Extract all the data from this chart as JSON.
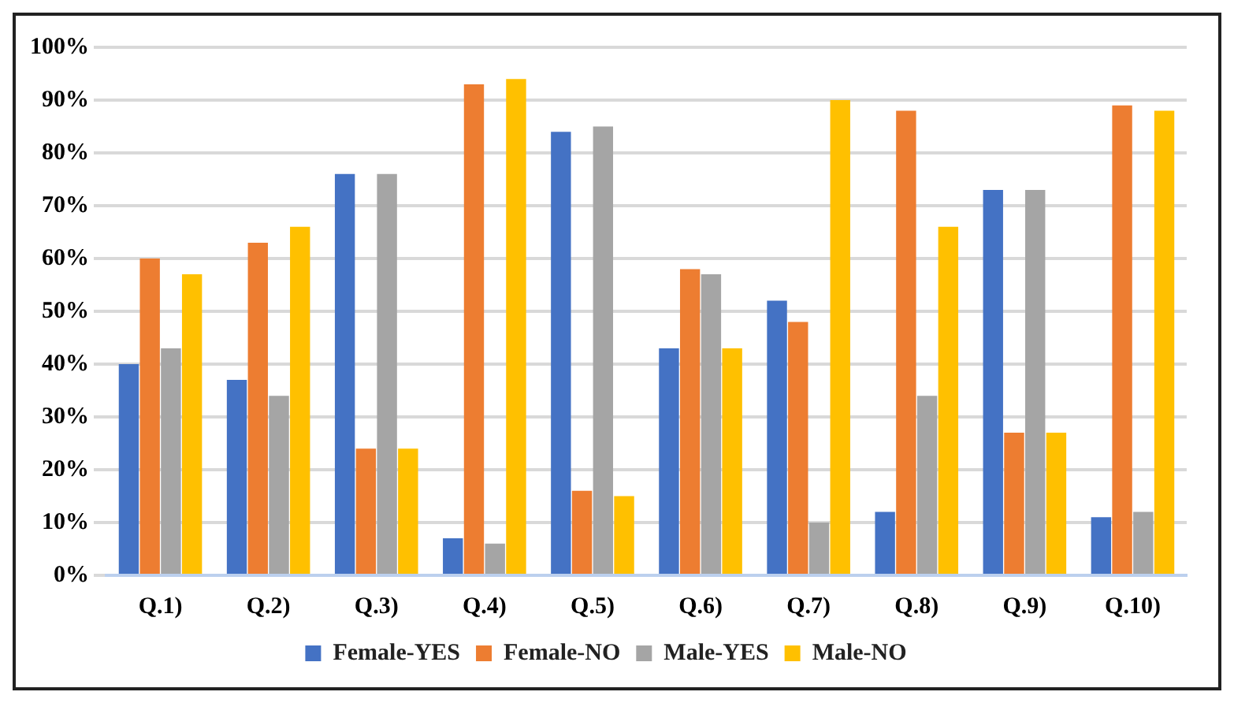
{
  "chart_data": {
    "type": "bar",
    "categories": [
      "Q.1)",
      "Q.2)",
      "Q.3)",
      "Q.4)",
      "Q.5)",
      "Q.6)",
      "Q.7)",
      "Q.8)",
      "Q.9)",
      "Q.10)"
    ],
    "series": [
      {
        "name": "Female-YES",
        "color": "#4472c4",
        "values": [
          40,
          37,
          76,
          7,
          84,
          43,
          52,
          12,
          73,
          11
        ]
      },
      {
        "name": "Female-NO",
        "color": "#ed7d31",
        "values": [
          60,
          63,
          24,
          93,
          16,
          58,
          48,
          88,
          27,
          89
        ]
      },
      {
        "name": "Male-YES",
        "color": "#a5a5a5",
        "values": [
          43,
          34,
          76,
          6,
          85,
          57,
          10,
          34,
          73,
          12
        ]
      },
      {
        "name": "Male-NO",
        "color": "#ffc000",
        "values": [
          57,
          66,
          24,
          94,
          15,
          43,
          90,
          66,
          27,
          88
        ]
      }
    ],
    "ylim": [
      0,
      100
    ],
    "yticks": [
      {
        "value": 0,
        "label": "0%"
      },
      {
        "value": 10,
        "label": "10%"
      },
      {
        "value": 20,
        "label": "20%"
      },
      {
        "value": 30,
        "label": "30%"
      },
      {
        "value": 40,
        "label": "40%"
      },
      {
        "value": 50,
        "label": "50%"
      },
      {
        "value": 60,
        "label": "60%"
      },
      {
        "value": 70,
        "label": "70%"
      },
      {
        "value": 80,
        "label": "80%"
      },
      {
        "value": 90,
        "label": "90%"
      },
      {
        "value": 100,
        "label": "100%"
      }
    ],
    "grid": "y",
    "legend": "bottom"
  }
}
